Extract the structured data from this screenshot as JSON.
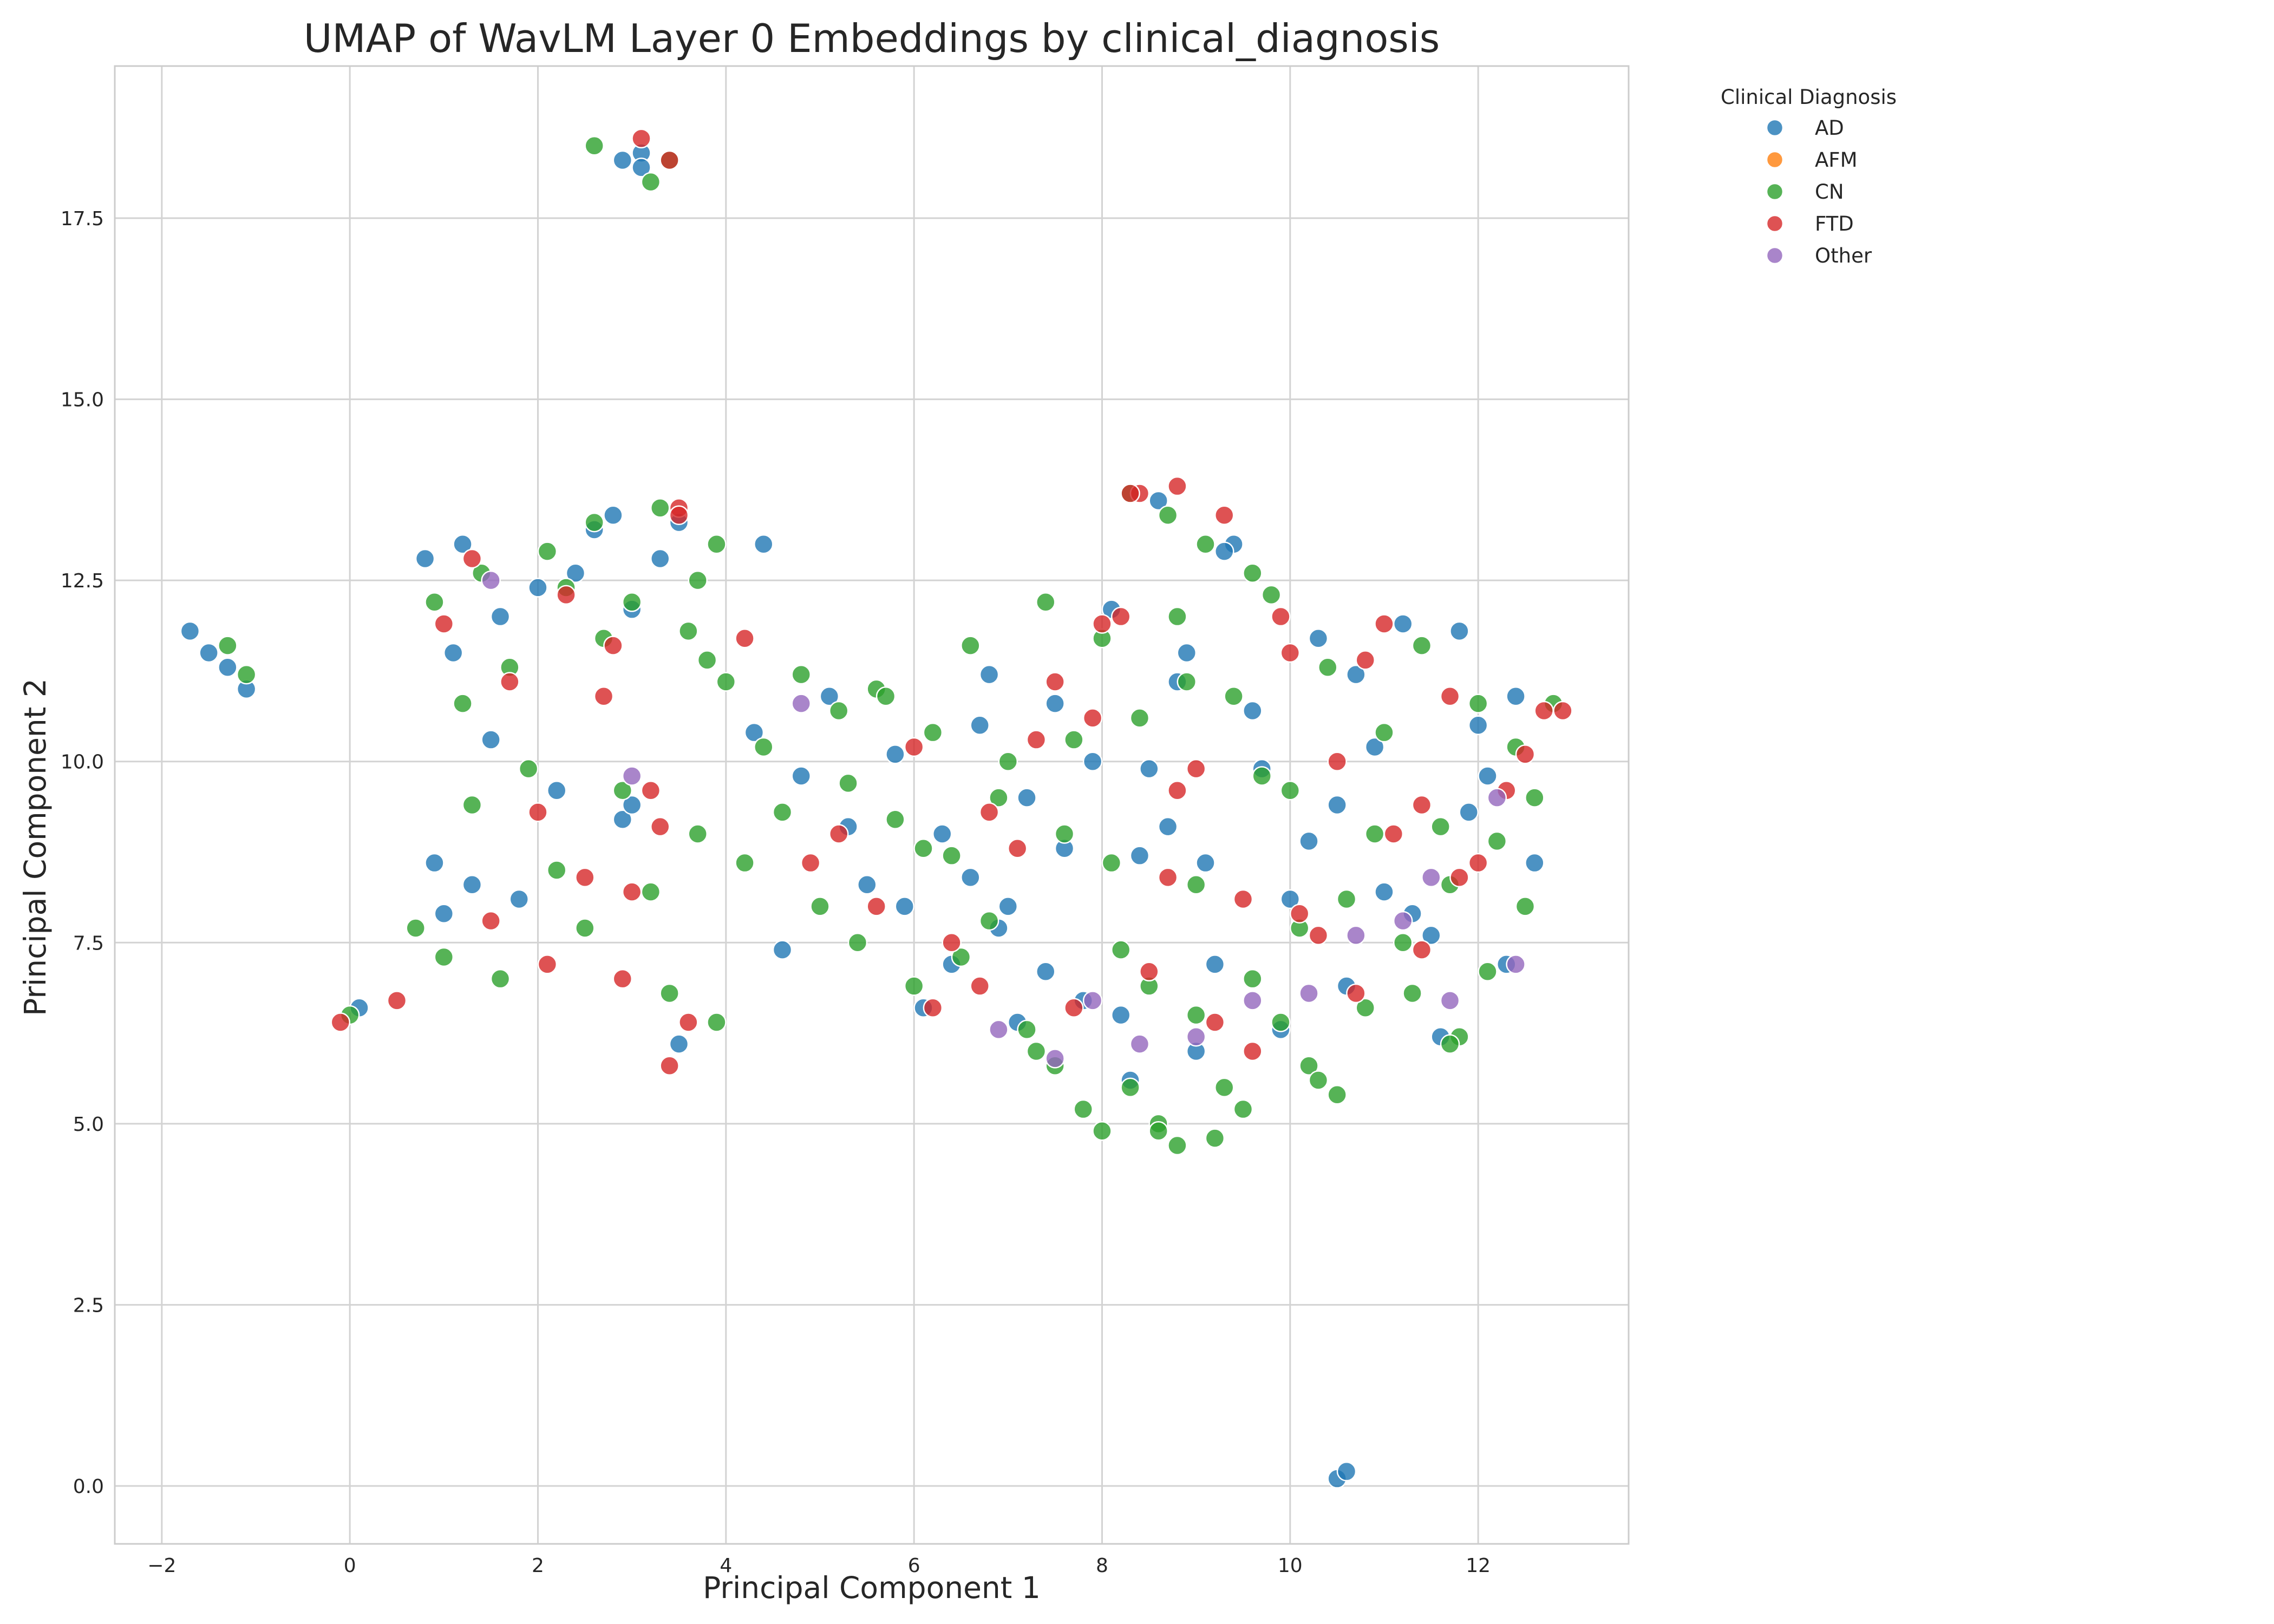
{
  "chart_data": {
    "type": "scatter",
    "title": "UMAP of WavLM Layer 0 Embeddings by clinical_diagnosis",
    "xlabel": "Principal Component 1",
    "ylabel": "Principal Component 2",
    "xlim": [
      -2.5,
      13.6
    ],
    "ylim": [
      -0.8,
      19.6
    ],
    "xticks": [
      -2,
      0,
      2,
      4,
      6,
      8,
      10,
      12
    ],
    "yticks": [
      0.0,
      2.5,
      5.0,
      7.5,
      10.0,
      12.5,
      15.0,
      17.5
    ],
    "xtick_labels": [
      "−2",
      "0",
      "2",
      "4",
      "6",
      "8",
      "10",
      "12"
    ],
    "ytick_labels": [
      "0.0",
      "2.5",
      "5.0",
      "7.5",
      "10.0",
      "12.5",
      "15.0",
      "17.5"
    ],
    "grid": true,
    "legend": {
      "title": "Clinical Diagnosis",
      "placement": "outside-upper-right",
      "entries": [
        {
          "name": "AD",
          "color": "#1f77b4"
        },
        {
          "name": "AFM",
          "color": "#ff7f0e"
        },
        {
          "name": "CN",
          "color": "#2ca02c"
        },
        {
          "name": "FTD",
          "color": "#d62728"
        },
        {
          "name": "Other",
          "color": "#9467bd"
        }
      ]
    },
    "series": [
      {
        "name": "AD",
        "color": "#1f77b4",
        "x": [
          -1.7,
          -1.5,
          -1.3,
          -1.1,
          0.1,
          0.8,
          0.9,
          1.0,
          1.1,
          1.2,
          1.3,
          1.5,
          1.6,
          1.8,
          2.0,
          2.2,
          2.4,
          2.6,
          2.8,
          2.9,
          3.0,
          3.1,
          3.3,
          3.5,
          3.5,
          3.1,
          2.9,
          3.0,
          4.4,
          4.3,
          4.6,
          4.8,
          5.1,
          5.5,
          5.8,
          6.1,
          6.4,
          6.8,
          7.0,
          7.2,
          7.5,
          7.8,
          8.1,
          8.4,
          8.6,
          8.9,
          9.2,
          9.4,
          9.7,
          10.0,
          10.3,
          10.6,
          10.9,
          11.2,
          11.5,
          11.8,
          12.1,
          12.4,
          12.6,
          6.3,
          6.6,
          7.4,
          7.9,
          8.3,
          8.7,
          9.0,
          9.6,
          10.2,
          10.7,
          11.3,
          11.6,
          12.0,
          12.3,
          7.6,
          8.2,
          8.8,
          9.3,
          9.9,
          10.5,
          11.0,
          10.5,
          10.6,
          9.1,
          8.5,
          7.1,
          6.7,
          5.3,
          5.9,
          6.9,
          11.9
        ],
        "y": [
          11.8,
          11.5,
          11.3,
          11.0,
          6.6,
          12.8,
          8.6,
          7.9,
          11.5,
          13.0,
          8.3,
          10.3,
          12.0,
          8.1,
          12.4,
          9.6,
          12.6,
          13.2,
          13.4,
          9.2,
          12.1,
          18.4,
          12.8,
          13.3,
          6.1,
          18.2,
          18.3,
          9.4,
          13.0,
          10.4,
          7.4,
          9.8,
          10.9,
          8.3,
          10.1,
          6.6,
          7.2,
          11.2,
          8.0,
          9.5,
          10.8,
          6.7,
          12.1,
          8.7,
          13.6,
          11.5,
          7.2,
          13.0,
          9.9,
          8.1,
          11.7,
          6.9,
          10.2,
          11.9,
          7.6,
          11.8,
          9.8,
          10.9,
          8.6,
          9.0,
          8.4,
          7.1,
          10.0,
          5.6,
          9.1,
          6.0,
          10.7,
          8.9,
          11.2,
          7.9,
          6.2,
          10.5,
          7.2,
          8.8,
          6.5,
          11.1,
          12.9,
          6.3,
          9.4,
          8.2,
          0.1,
          0.2,
          8.6,
          9.9,
          6.4,
          10.5,
          9.1,
          8.0,
          7.7,
          9.3
        ]
      },
      {
        "name": "AFM",
        "color": "#ff7f0e",
        "x": [],
        "y": []
      },
      {
        "name": "CN",
        "color": "#2ca02c",
        "x": [
          -1.3,
          -1.1,
          0.0,
          0.7,
          0.9,
          1.0,
          1.2,
          1.3,
          1.4,
          1.6,
          1.7,
          1.9,
          2.1,
          2.2,
          2.3,
          2.5,
          2.6,
          2.7,
          2.9,
          3.0,
          3.2,
          3.3,
          3.4,
          3.6,
          3.7,
          3.8,
          3.9,
          2.6,
          3.2,
          3.4,
          4.0,
          4.2,
          4.4,
          4.6,
          4.8,
          5.0,
          5.2,
          5.4,
          5.6,
          5.8,
          6.0,
          6.2,
          6.4,
          6.6,
          6.8,
          7.0,
          7.2,
          7.4,
          7.6,
          7.8,
          8.0,
          8.2,
          8.4,
          8.6,
          8.8,
          9.0,
          9.2,
          9.4,
          9.6,
          9.8,
          10.0,
          10.2,
          10.4,
          10.6,
          10.8,
          11.0,
          11.2,
          11.4,
          11.6,
          11.8,
          12.0,
          12.2,
          12.4,
          12.6,
          12.8,
          5.3,
          5.7,
          6.1,
          6.5,
          6.9,
          7.3,
          7.7,
          8.1,
          8.5,
          8.9,
          9.3,
          9.7,
          10.1,
          10.5,
          10.9,
          11.3,
          11.7,
          12.1,
          12.5,
          7.5,
          8.0,
          8.3,
          8.7,
          9.0,
          9.5,
          9.9,
          10.3,
          8.8,
          9.1,
          9.6,
          8.3,
          8.6,
          11.7,
          3.7,
          3.9
        ],
        "y": [
          11.6,
          11.2,
          6.5,
          7.7,
          12.2,
          7.3,
          10.8,
          9.4,
          12.6,
          7.0,
          11.3,
          9.9,
          12.9,
          8.5,
          12.4,
          7.7,
          13.3,
          11.7,
          9.6,
          12.2,
          8.2,
          13.5,
          6.8,
          11.8,
          9.0,
          11.4,
          6.4,
          18.5,
          18.0,
          18.3,
          11.1,
          8.6,
          10.2,
          9.3,
          11.2,
          8.0,
          10.7,
          7.5,
          11.0,
          9.2,
          6.9,
          10.4,
          8.7,
          11.6,
          7.8,
          10.0,
          6.3,
          12.2,
          9.0,
          5.2,
          11.7,
          7.4,
          10.6,
          5.0,
          12.0,
          8.3,
          4.8,
          10.9,
          7.0,
          12.3,
          9.6,
          5.8,
          11.3,
          8.1,
          6.6,
          10.4,
          7.5,
          11.6,
          9.1,
          6.2,
          10.8,
          8.9,
          10.2,
          9.5,
          10.8,
          9.7,
          10.9,
          8.8,
          7.3,
          9.5,
          6.0,
          10.3,
          8.6,
          6.9,
          11.1,
          5.5,
          9.8,
          7.7,
          5.4,
          9.0,
          6.8,
          8.3,
          7.1,
          8.0,
          5.8,
          4.9,
          13.7,
          13.4,
          6.5,
          5.2,
          6.4,
          5.6,
          4.7,
          13.0,
          12.6,
          5.5,
          4.9,
          6.1,
          12.5,
          13.0
        ]
      },
      {
        "name": "FTD",
        "color": "#d62728",
        "x": [
          -0.1,
          0.5,
          1.0,
          1.3,
          1.5,
          1.7,
          2.0,
          2.1,
          2.3,
          2.5,
          2.7,
          2.9,
          3.1,
          3.2,
          3.4,
          3.4,
          3.5,
          2.8,
          3.0,
          3.3,
          3.5,
          3.6,
          4.2,
          4.9,
          5.2,
          5.6,
          6.0,
          6.4,
          6.8,
          7.1,
          7.5,
          7.9,
          8.2,
          8.4,
          8.7,
          9.0,
          9.3,
          9.6,
          9.9,
          10.1,
          10.5,
          10.8,
          11.1,
          11.4,
          11.7,
          12.0,
          12.3,
          12.7,
          12.9,
          7.7,
          8.5,
          9.2,
          10.0,
          10.7,
          11.4,
          6.2,
          6.7,
          7.3,
          8.0,
          8.8,
          9.5,
          10.3,
          11.0,
          11.8,
          12.5,
          8.3,
          8.8
        ],
        "y": [
          6.4,
          6.7,
          11.9,
          12.8,
          7.8,
          11.1,
          9.3,
          7.2,
          12.3,
          8.4,
          10.9,
          7.0,
          18.6,
          9.6,
          5.8,
          18.3,
          13.5,
          11.6,
          8.2,
          9.1,
          13.4,
          6.4,
          11.7,
          8.6,
          9.0,
          8.0,
          10.2,
          7.5,
          9.3,
          8.8,
          11.1,
          10.6,
          12.0,
          13.7,
          8.4,
          9.9,
          13.4,
          6.0,
          12.0,
          7.9,
          10.0,
          11.4,
          9.0,
          7.4,
          10.9,
          8.6,
          9.6,
          10.7,
          10.7,
          6.6,
          7.1,
          6.4,
          11.5,
          6.8,
          9.4,
          6.6,
          6.9,
          10.3,
          11.9,
          9.6,
          8.1,
          7.6,
          11.9,
          8.4,
          10.1,
          13.7,
          13.8
        ]
      },
      {
        "name": "Other",
        "color": "#9467bd",
        "x": [
          1.5,
          3.0,
          4.8,
          7.5,
          7.9,
          8.4,
          9.0,
          9.6,
          10.2,
          10.7,
          11.2,
          11.7,
          12.2,
          12.4,
          6.9,
          11.5
        ],
        "y": [
          12.5,
          9.8,
          10.8,
          5.9,
          6.7,
          6.1,
          6.2,
          6.7,
          6.8,
          7.6,
          7.8,
          6.7,
          9.5,
          7.2,
          6.3,
          8.4
        ]
      }
    ]
  }
}
